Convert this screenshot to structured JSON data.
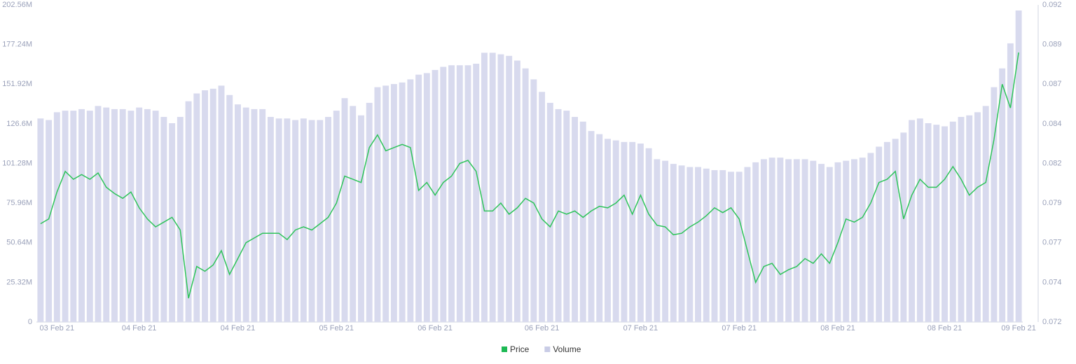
{
  "chart_data": {
    "type": "bar-line",
    "categories": [
      null,
      null,
      "03 Feb 21",
      null,
      null,
      null,
      null,
      null,
      null,
      null,
      null,
      null,
      "04 Feb 21",
      null,
      null,
      null,
      null,
      null,
      null,
      null,
      null,
      null,
      null,
      null,
      "04 Feb 21",
      null,
      null,
      null,
      null,
      null,
      null,
      null,
      null,
      null,
      null,
      null,
      "05 Feb 21",
      null,
      null,
      null,
      null,
      null,
      null,
      null,
      null,
      null,
      null,
      null,
      "06 Feb 21",
      null,
      null,
      null,
      null,
      null,
      null,
      null,
      null,
      null,
      null,
      null,
      null,
      "06 Feb 21",
      null,
      null,
      null,
      null,
      null,
      null,
      null,
      null,
      null,
      null,
      null,
      "07 Feb 21",
      null,
      null,
      null,
      null,
      null,
      null,
      null,
      null,
      null,
      null,
      null,
      "07 Feb 21",
      null,
      null,
      null,
      null,
      null,
      null,
      null,
      null,
      null,
      null,
      null,
      "08 Feb 21",
      null,
      null,
      null,
      null,
      null,
      null,
      null,
      null,
      null,
      null,
      null,
      null,
      "08 Feb 21",
      null,
      null,
      null,
      null,
      null,
      null,
      null,
      null,
      "09 Feb 21"
    ],
    "series": [
      {
        "name": "Price",
        "type": "line",
        "axis": "y2",
        "color": "#2ec45a",
        "values": [
          0.0782,
          0.0785,
          0.0802,
          0.0815,
          0.081,
          0.0813,
          0.081,
          0.0814,
          0.0805,
          0.0801,
          0.0798,
          0.0802,
          0.0792,
          0.0785,
          0.078,
          0.0783,
          0.0786,
          0.0778,
          0.0735,
          0.0755,
          0.0752,
          0.0756,
          0.0765,
          0.075,
          0.076,
          0.077,
          0.0773,
          0.0776,
          0.0776,
          0.0776,
          0.0772,
          0.0778,
          0.078,
          0.0778,
          0.0782,
          0.0786,
          0.0795,
          0.0812,
          0.081,
          0.0808,
          0.083,
          0.0838,
          0.0828,
          0.083,
          0.0832,
          0.083,
          0.0803,
          0.0808,
          0.08,
          0.0808,
          0.0812,
          0.082,
          0.0822,
          0.0815,
          0.079,
          0.079,
          0.0795,
          0.0788,
          0.0792,
          0.0798,
          0.0795,
          0.0785,
          0.078,
          0.079,
          0.0788,
          0.079,
          0.0786,
          0.079,
          0.0793,
          0.0792,
          0.0795,
          0.08,
          0.0788,
          0.08,
          0.0788,
          0.0781,
          0.078,
          0.0775,
          0.0776,
          0.078,
          0.0783,
          0.0787,
          0.0792,
          0.0789,
          0.0792,
          0.0785,
          0.0765,
          0.0745,
          0.0755,
          0.0757,
          0.075,
          0.0753,
          0.0755,
          0.076,
          0.0757,
          0.0763,
          0.0757,
          0.077,
          0.0785,
          0.0783,
          0.0786,
          0.0795,
          0.0808,
          0.081,
          0.0815,
          0.0785,
          0.08,
          0.081,
          0.0805,
          0.0805,
          0.081,
          0.0818,
          0.081,
          0.08,
          0.0805,
          0.0808,
          0.0835,
          0.087,
          0.0855,
          0.089
        ]
      },
      {
        "name": "Volume",
        "type": "bar",
        "axis": "y",
        "color": "#d8daee",
        "values": [
          130,
          129,
          134,
          135,
          135,
          136,
          135,
          138,
          137,
          136,
          136,
          135,
          137,
          136,
          135,
          131,
          127,
          131,
          141,
          146,
          148,
          149,
          151,
          145,
          139,
          137,
          136,
          136,
          131,
          130,
          130,
          129,
          130,
          129,
          129,
          131,
          135,
          143,
          138,
          132,
          140,
          150,
          151,
          152,
          153,
          155,
          158,
          159,
          161,
          163,
          164,
          164,
          164,
          165,
          172,
          172,
          171,
          170,
          167,
          162,
          155,
          147,
          140,
          136,
          135,
          131,
          128,
          122,
          120,
          117,
          116,
          115,
          115,
          114,
          111,
          104,
          103,
          101,
          100,
          99,
          99,
          98,
          97,
          97,
          96,
          96,
          99,
          102,
          104,
          105,
          105,
          104,
          104,
          104,
          103,
          101,
          99,
          102,
          103,
          104,
          105,
          108,
          112,
          115,
          117,
          121,
          129,
          130,
          127,
          126,
          125,
          128,
          131,
          132,
          134,
          138,
          150,
          162,
          178,
          199
        ]
      }
    ],
    "ylim": [
      0,
      202.56
    ],
    "yticks": [
      0,
      {
        "value": 25.32,
        "label": "25.32M"
      },
      {
        "value": 50.64,
        "label": "50.64M"
      },
      {
        "value": 75.96,
        "label": "75.96M"
      },
      {
        "value": 101.28,
        "label": "101.28M"
      },
      {
        "value": 126.6,
        "label": "126.6M"
      },
      {
        "value": 151.92,
        "label": "151.92M"
      },
      {
        "value": 177.24,
        "label": "177.24M"
      },
      {
        "value": 202.56,
        "label": "202.56M"
      }
    ],
    "y2lim": [
      0.072,
      0.092
    ],
    "y2ticks": [
      0.072,
      {
        "value": 0.0745,
        "label": "0.074"
      },
      0.077,
      {
        "value": 0.0795,
        "label": "0.079"
      },
      0.082,
      {
        "value": 0.0845,
        "label": "0.084"
      },
      0.087,
      {
        "value": 0.0895,
        "label": "0.089"
      },
      0.092
    ],
    "legend": "bottom"
  }
}
